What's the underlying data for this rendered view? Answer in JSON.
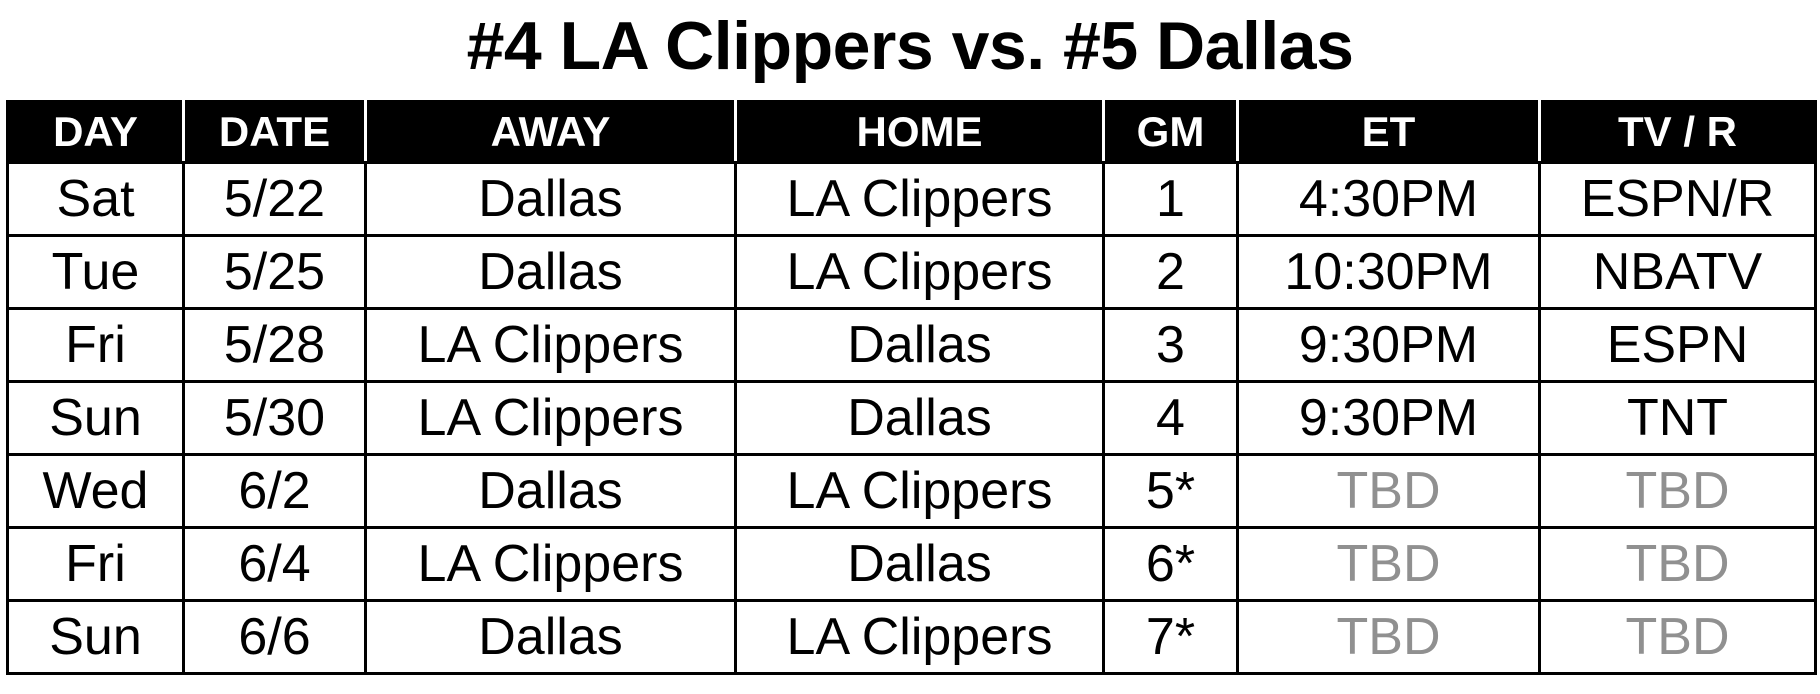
{
  "title": "#4 LA Clippers vs. #5 Dallas",
  "columns": {
    "day": "DAY",
    "date": "DATE",
    "away": "AWAY",
    "home": "HOME",
    "gm": "GM",
    "et": "ET",
    "tv": "TV / R"
  },
  "games": [
    {
      "day": "Sat",
      "date": "5/22",
      "away": "Dallas",
      "home": "LA Clippers",
      "gm": "1",
      "et": "4:30PM",
      "tv": "ESPN/R"
    },
    {
      "day": "Tue",
      "date": "5/25",
      "away": "Dallas",
      "home": "LA Clippers",
      "gm": "2",
      "et": "10:30PM",
      "tv": "NBATV"
    },
    {
      "day": "Fri",
      "date": "5/28",
      "away": "LA Clippers",
      "home": "Dallas",
      "gm": "3",
      "et": "9:30PM",
      "tv": "ESPN"
    },
    {
      "day": "Sun",
      "date": "5/30",
      "away": "LA Clippers",
      "home": "Dallas",
      "gm": "4",
      "et": "9:30PM",
      "tv": "TNT"
    },
    {
      "day": "Wed",
      "date": "6/2",
      "away": "Dallas",
      "home": "LA Clippers",
      "gm": "5*",
      "et": "TBD",
      "tv": "TBD"
    },
    {
      "day": "Fri",
      "date": "6/4",
      "away": "LA Clippers",
      "home": "Dallas",
      "gm": "6*",
      "et": "TBD",
      "tv": "TBD"
    },
    {
      "day": "Sun",
      "date": "6/6",
      "away": "Dallas",
      "home": "LA Clippers",
      "gm": "7*",
      "et": "TBD",
      "tv": "TBD"
    }
  ],
  "colors": {
    "header_bg": "#000000",
    "header_text": "#ffffff",
    "tbd_text": "#909090"
  }
}
